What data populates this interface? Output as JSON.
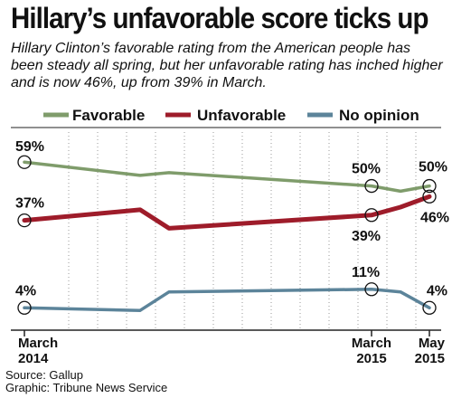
{
  "title": "Hillary’s unfavorable score ticks up",
  "subtitle": "Hillary Clinton’s favorable rating from the American people has been steady all spring, but her unfavorable rating has inched higher and is now 46%, up from 39% in March.",
  "source_line": "Source: Gallup",
  "graphic_line": "Graphic: Tribune News Service",
  "colors": {
    "favorable": "#7f9c6b",
    "unfavorable": "#9e1c2a",
    "no_opinion": "#5c849a"
  },
  "chart_data": {
    "type": "line",
    "title": "Hillary’s unfavorable score ticks up",
    "xlabel": "",
    "ylabel": "",
    "ylim": [
      0,
      70
    ],
    "grid": "vertical dotted",
    "legend": "top",
    "x_ticks": [
      {
        "line1": "March",
        "line2": "2014",
        "x": 0
      },
      {
        "line1": "March",
        "line2": "2015",
        "x": 12
      },
      {
        "line1": "May",
        "line2": "2015",
        "x": 14
      }
    ],
    "x": [
      0,
      4,
      5,
      12,
      13,
      14
    ],
    "series": [
      {
        "name": "Favorable",
        "values": [
          59,
          54,
          55,
          50,
          48,
          50
        ]
      },
      {
        "name": "Unfavorable",
        "values": [
          37,
          41,
          34,
          39,
          42,
          46
        ]
      },
      {
        "name": "No opinion",
        "values": [
          4,
          3,
          10,
          11,
          10,
          4
        ]
      }
    ],
    "annotations": [
      {
        "text": "59%",
        "series": 0,
        "point": 0
      },
      {
        "text": "37%",
        "series": 1,
        "point": 0
      },
      {
        "text": "4%",
        "series": 2,
        "point": 0
      },
      {
        "text": "50%",
        "series": 0,
        "point": 3
      },
      {
        "text": "39%",
        "series": 1,
        "point": 3
      },
      {
        "text": "11%",
        "series": 2,
        "point": 3
      },
      {
        "text": "50%",
        "series": 0,
        "point": 5
      },
      {
        "text": "46%",
        "series": 1,
        "point": 5
      },
      {
        "text": "4%",
        "series": 2,
        "point": 5
      }
    ]
  }
}
